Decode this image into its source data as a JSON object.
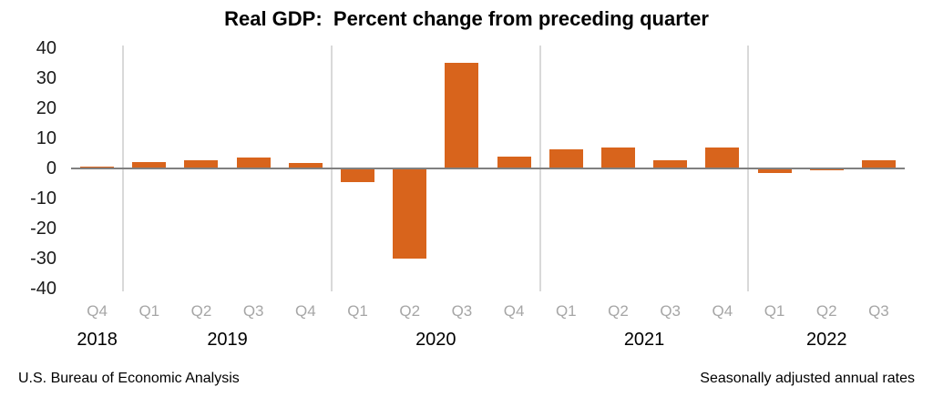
{
  "title": "Real GDP:  Percent change from preceding quarter",
  "footer": {
    "source": "U.S. Bureau of Economic Analysis",
    "note": "Seasonally adjusted annual rates"
  },
  "chart_data": {
    "type": "bar",
    "title": "Real GDP:  Percent change from preceding quarter",
    "categories": [
      "Q4",
      "Q1",
      "Q2",
      "Q3",
      "Q4",
      "Q1",
      "Q2",
      "Q3",
      "Q4",
      "Q1",
      "Q2",
      "Q3",
      "Q4",
      "Q1",
      "Q2",
      "Q3"
    ],
    "year_groups": [
      {
        "year": "2018",
        "quarters": 1
      },
      {
        "year": "2019",
        "quarters": 4
      },
      {
        "year": "2020",
        "quarters": 4
      },
      {
        "year": "2021",
        "quarters": 4
      },
      {
        "year": "2022",
        "quarters": 3
      }
    ],
    "values": [
      0.7,
      2.2,
      2.7,
      3.6,
      1.8,
      -4.6,
      -29.9,
      35.3,
      3.9,
      6.3,
      7.0,
      2.7,
      7.0,
      -1.6,
      -0.6,
      2.6
    ],
    "xlabel": "",
    "ylabel": "",
    "ylim": [
      -40,
      40
    ],
    "yticks": [
      40,
      30,
      20,
      10,
      0,
      -10,
      -20,
      -30,
      -40
    ],
    "grid": "vertical-year-separators-only",
    "legend": "none",
    "colors": {
      "bar": "#D8641C",
      "year_gridline": "#D9D9D9",
      "zero_line": "#808080",
      "quarter_label": "#A6A6A6",
      "year_label": "#000000",
      "title": "#000000"
    }
  }
}
